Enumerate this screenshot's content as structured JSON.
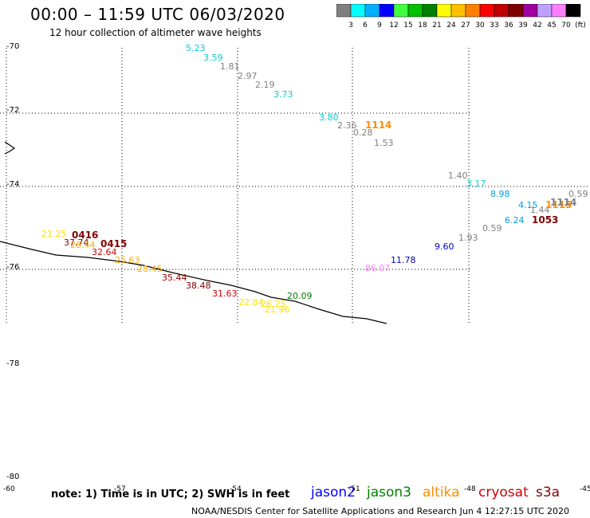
{
  "header": {
    "title": "00:00 – 11:59 UTC 06/03/2020",
    "subtitle": "12 hour collection of altimeter wave heights"
  },
  "scale": {
    "colors": [
      "#808080",
      "#00ffff",
      "#00b0ff",
      "#0000ff",
      "#40ff40",
      "#00c000",
      "#008000",
      "#ffff00",
      "#ffc000",
      "#ff8000",
      "#ff0000",
      "#c00000",
      "#800000",
      "#a000a0",
      "#c0a0ff",
      "#ff80ff",
      "#000000"
    ],
    "labels": [
      "3",
      "6",
      "9",
      "12",
      "15",
      "18",
      "21",
      "24",
      "27",
      "30",
      "33",
      "36",
      "39",
      "42",
      "45",
      "70",
      "(ft)"
    ]
  },
  "lat_labels": [
    "-70",
    "-72",
    "-74",
    "-76",
    "-78",
    "-80"
  ],
  "lon_labels": [
    "-60",
    "-57",
    "-54",
    "-51",
    "-48",
    "-45"
  ],
  "observations": [
    {
      "v": "5.23",
      "c": "#00d0d0"
    },
    {
      "v": "3.59",
      "c": "#00d0d0"
    },
    {
      "v": "1.81",
      "c": "#808080"
    },
    {
      "v": "2.97",
      "c": "#808080"
    },
    {
      "v": "2.19",
      "c": "#808080"
    },
    {
      "v": "3.73",
      "c": "#00d0d0"
    },
    {
      "v": "3.80",
      "c": "#00d0d0"
    },
    {
      "v": "2.36",
      "c": "#808080"
    },
    {
      "v": "0.28",
      "c": "#808080"
    },
    {
      "v": "1.53",
      "c": "#808080"
    },
    {
      "v": "1.40",
      "c": "#808080"
    },
    {
      "v": "3.17",
      "c": "#00d0d0"
    },
    {
      "v": "8.98",
      "c": "#00a0e0"
    },
    {
      "v": "0.59",
      "c": "#808080"
    },
    {
      "v": "4.15",
      "c": "#00a0e0"
    },
    {
      "v": "1.44",
      "c": "#808080"
    },
    {
      "v": "6.24",
      "c": "#00a0e0"
    },
    {
      "v": "1.93",
      "c": "#808080"
    },
    {
      "v": "0.59",
      "c": "#808080"
    },
    {
      "v": "9.60",
      "c": "#0000c0"
    },
    {
      "v": "11.78",
      "c": "#0000c0"
    },
    {
      "v": "86.07",
      "c": "#ff80ff"
    },
    {
      "v": "21.25",
      "c": "#ffe000"
    },
    {
      "v": "37.74",
      "c": "#800000"
    },
    {
      "v": "28.44",
      "c": "#ffb000"
    },
    {
      "v": "32.64",
      "c": "#d00000"
    },
    {
      "v": "25.63",
      "c": "#ffb000"
    },
    {
      "v": "28.45",
      "c": "#ffb000"
    },
    {
      "v": "35.44",
      "c": "#a00000"
    },
    {
      "v": "38.48",
      "c": "#800000"
    },
    {
      "v": "31.63",
      "c": "#d00000"
    },
    {
      "v": "20.09",
      "c": "#008000"
    },
    {
      "v": "22.84",
      "c": "#ffe000"
    },
    {
      "v": "26.25",
      "c": "#ffe000"
    },
    {
      "v": "21.96",
      "c": "#ffe000"
    }
  ],
  "stations": [
    {
      "v": "1114",
      "c": "#ff8c00"
    },
    {
      "v": "1115",
      "c": "#ff8c00"
    },
    {
      "v": "1114",
      "c": "#808080"
    },
    {
      "v": "1053",
      "c": "#800000"
    },
    {
      "v": "0416",
      "c": "#800000"
    },
    {
      "v": "0415",
      "c": "#800000"
    }
  ],
  "legend": {
    "note": "note: 1) Time is in UTC; 2) SWH is in feet",
    "satellites": [
      {
        "name": "jason2",
        "color": "#0000ff"
      },
      {
        "name": "jason3",
        "color": "#008000"
      },
      {
        "name": "altika",
        "color": "#ff8c00"
      },
      {
        "name": "cryosat",
        "color": "#d00000"
      },
      {
        "name": "s3a",
        "color": "#800000"
      }
    ]
  },
  "credit": "NOAA/NESDIS Center for Satellite Applications and Research   Jun  4 12:27:15 UTC 2020"
}
